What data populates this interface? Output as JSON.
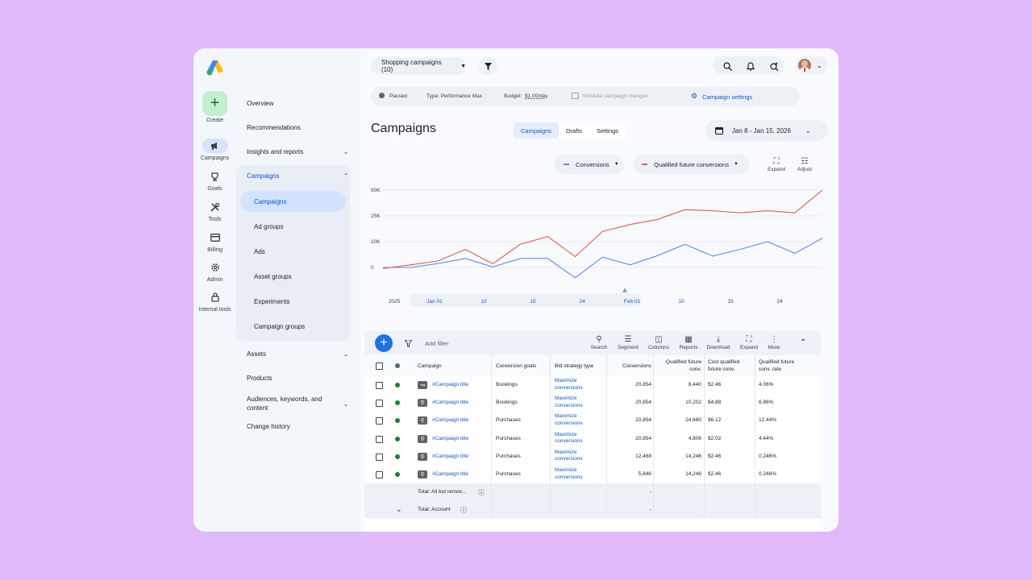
{
  "rail": {
    "create_label": "Create",
    "items": [
      {
        "label": "Campaigns",
        "icon": "megaphone-icon"
      },
      {
        "label": "Goals",
        "icon": "trophy-icon"
      },
      {
        "label": "Tools",
        "icon": "tools-icon"
      },
      {
        "label": "Billing",
        "icon": "credit-card-icon"
      },
      {
        "label": "Admin",
        "icon": "gear-icon"
      },
      {
        "label": "Internal tools",
        "icon": "lock-icon"
      }
    ]
  },
  "nav": {
    "overview": "Overview",
    "recommendations": "Recommendations",
    "insights": "Insights and reports",
    "campaigns_group": "Campaigns",
    "sub_items": [
      "Campaigns",
      "Ad groups",
      "Ads",
      "Asset groups",
      "Experiments",
      "Campaign groups"
    ],
    "assets": "Assets",
    "products": "Products",
    "audiences": "Audiences, keywords, and content",
    "change_history": "Change history"
  },
  "header": {
    "campaign_selector": "Shopping campaigns (10)"
  },
  "status_bar": {
    "status": "Paused",
    "type": "Type: Performance Max",
    "budget_label": "Budget:",
    "budget_value": "$1.00/day",
    "simulate": "Simulate campaign changes",
    "settings": "Campaign settings"
  },
  "page": {
    "title": "Campaigns",
    "tabs": [
      "Campaigns",
      "Drafts",
      "Settings"
    ],
    "date_range": "Jan 8 - Jan 15, 2026"
  },
  "metrics": {
    "primary": "Conversions",
    "secondary": "Qualified future conversions",
    "expand": "Expand",
    "adjust": "Adjust"
  },
  "colors": {
    "accent": "#0b57d0",
    "series_blue": "#5b8def",
    "series_red": "#e05a4f",
    "status_green": "#188038"
  },
  "chart_data": {
    "type": "line",
    "y_ticks": [
      "50K",
      "25K",
      "10K",
      "0"
    ],
    "x_ticks": [
      "2025",
      "Jan 01",
      "10",
      "15",
      "24",
      "Feb 01",
      "10",
      "15",
      "24"
    ],
    "series": [
      {
        "name": "Conversions",
        "values": [
          0,
          0,
          1500,
          3500,
          200,
          3500,
          3500,
          -4000,
          4000,
          1000,
          4600,
          9000,
          4400,
          7000,
          10000,
          5500,
          12000
        ]
      },
      {
        "name": "Qualified future conversions",
        "values": [
          -400,
          1000,
          2500,
          7000,
          1400,
          9000,
          13000,
          4200,
          16000,
          20000,
          23000,
          31000,
          30000,
          28000,
          30000,
          28000,
          50000
        ]
      }
    ]
  },
  "table": {
    "toolbar": {
      "add_filter": "Add filter",
      "tools": [
        "Search",
        "Segment",
        "Columns",
        "Reports",
        "Download",
        "Expand",
        "More"
      ]
    },
    "headers": {
      "campaign": "Campaign",
      "conversion_goals": "Conversion goals",
      "bid_strategy": "Bid strategy type",
      "conversions": "Conversions",
      "qualified": "Qualified future conv.",
      "cost_qualified": "Cost qualified future conv.",
      "qualified_rate": "Qualified future conv. rate"
    },
    "rows": [
      {
        "campaign": "#Campaign title",
        "goal": "Bookings",
        "bid": "Maximize conversions",
        "conversions": "20,854",
        "qualified": "8,440",
        "cost": "$2.46",
        "rate": "4.06%"
      },
      {
        "campaign": "#Campaign title",
        "goal": "Bookings",
        "bid": "Maximize conversions",
        "conversions": "20,854",
        "qualified": "10,202",
        "cost": "$4.88",
        "rate": "6.86%"
      },
      {
        "campaign": "#Campaign title",
        "goal": "Purchases",
        "bid": "Maximize conversions",
        "conversions": "20,854",
        "qualified": "24,680",
        "cost": "$6.12",
        "rate": "12.44%"
      },
      {
        "campaign": "#Campaign title",
        "goal": "Purchases",
        "bid": "Maximize conversions",
        "conversions": "20,854",
        "qualified": "4,806",
        "cost": "$2.02",
        "rate": "4.44%"
      },
      {
        "campaign": "#Campaign title",
        "goal": "Purchases",
        "bid": "Maximize conversions",
        "conversions": "12,468",
        "qualified": "14,246",
        "cost": "$2.46",
        "rate": "0.246%"
      },
      {
        "campaign": "#Campaign title",
        "goal": "Purchases",
        "bid": "Maximize conversions",
        "conversions": "5,846",
        "qualified": "14,246",
        "cost": "$2.46",
        "rate": "0.246%"
      }
    ],
    "totals": [
      {
        "label": "Total: All but remov...",
        "value": "-"
      },
      {
        "label": "Total: Account",
        "value": "-"
      }
    ]
  }
}
